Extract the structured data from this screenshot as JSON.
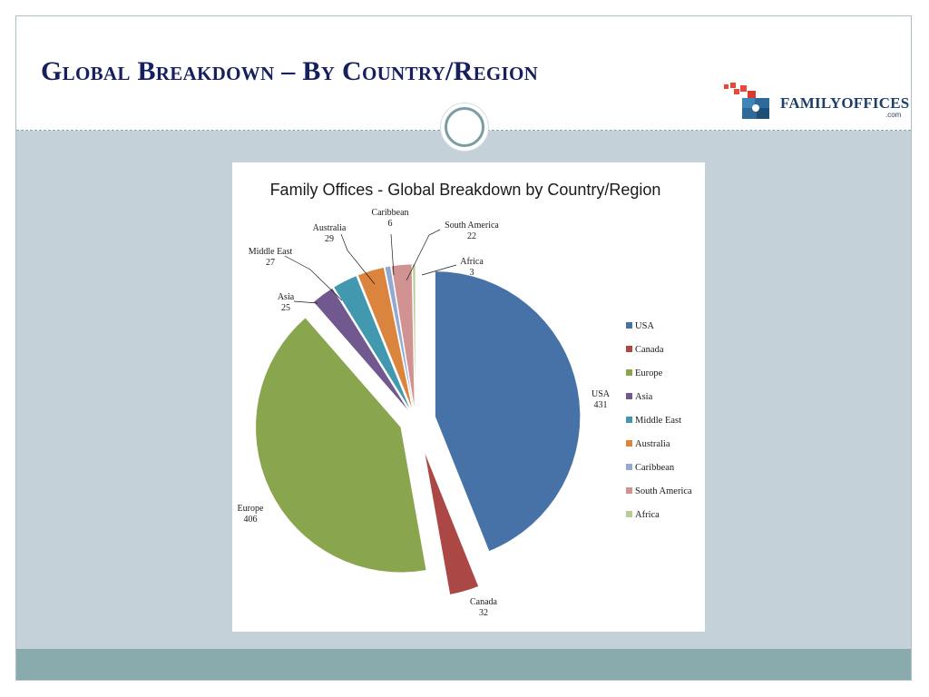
{
  "slide": {
    "title": "Global Breakdown – By Country/Region",
    "logo_text": "FAMILYOFFICES",
    "logo_sub": ".com"
  },
  "chart_data": {
    "type": "pie",
    "title": "Family Offices - Global Breakdown by Country/Region",
    "legend_position": "right",
    "categories": [
      "USA",
      "Canada",
      "Europe",
      "Asia",
      "Middle East",
      "Australia",
      "Caribbean",
      "South America",
      "Africa"
    ],
    "values": [
      431,
      32,
      406,
      25,
      27,
      29,
      6,
      22,
      3
    ],
    "colors": [
      "#4672a8",
      "#ab4744",
      "#89a54e",
      "#71588f",
      "#4198af",
      "#db843d",
      "#93a9cf",
      "#d19392",
      "#b9cd96"
    ],
    "exploded": true
  }
}
